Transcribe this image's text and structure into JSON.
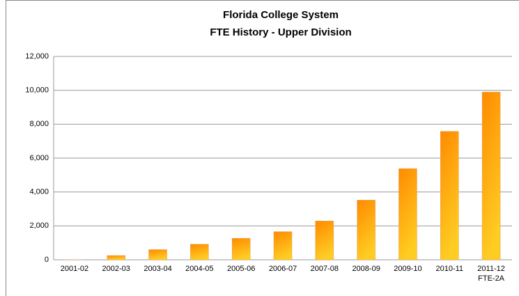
{
  "chart_data": {
    "type": "bar",
    "title": [
      "Florida College System",
      "FTE History - Upper Division"
    ],
    "categories": [
      "2001-02",
      "2002-03",
      "2003-04",
      "2004-05",
      "2005-06",
      "2006-07",
      "2007-08",
      "2008-09",
      "2009-10",
      "2010-11",
      "2011-12\nFTE-2A"
    ],
    "values": [
      10,
      250,
      600,
      920,
      1270,
      1660,
      2290,
      3520,
      5380,
      7580,
      9900
    ],
    "gradient": [
      "#ff8a00",
      "#ffcc22"
    ],
    "ylim": [
      0,
      12000
    ],
    "yticks": [
      0,
      {
        "value": 2000,
        "label": "2,000"
      },
      {
        "value": 4000,
        "label": "4,000"
      },
      {
        "value": 6000,
        "label": "6,000"
      },
      {
        "value": 8000,
        "label": "8,000"
      },
      {
        "value": 10000,
        "label": "10,000"
      },
      {
        "value": 12000,
        "label": "12,000"
      }
    ],
    "grid": true
  }
}
